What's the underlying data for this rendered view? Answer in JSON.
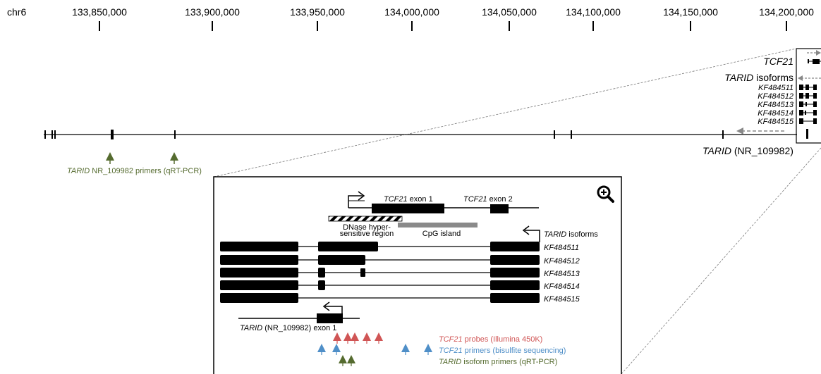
{
  "chrom_label": "chr6",
  "ticks": [
    "133,850,000",
    "133,900,000",
    "133,950,000",
    "134,000,000",
    "134,050,000",
    "134,100,000",
    "134,150,000",
    "134,200,000"
  ],
  "gene_tcf21": "TCF21",
  "tarid_isoforms_top": {
    "gene": "TARID",
    "rest": " isoforms"
  },
  "isoform_ids": [
    "KF484511",
    "KF484512",
    "KF484513",
    "KF484514",
    "KF484515"
  ],
  "tarid_nr": {
    "gene": "TARID",
    "rest": " (NR_109982)"
  },
  "nr_primers": {
    "gene": "TARID",
    "rest": " NR_109982 primers (qRT-PCR)"
  },
  "inset": {
    "exon1": {
      "gene": "TCF21",
      "rest": " exon 1"
    },
    "exon2": {
      "gene": "TCF21",
      "rest": " exon 2"
    },
    "dnase_line1": "DNase hyper-",
    "dnase_line2": "sensitive region",
    "cpg": "CpG island",
    "tarid_isoforms": {
      "gene": "TARID",
      "rest": " isoforms"
    },
    "nr_exon": {
      "gene": "TARID",
      "rest": " (NR_109982) exon 1"
    },
    "legend": [
      {
        "gene": "TCF21",
        "rest": " probes (Illumina 450K)",
        "color": "#d05555"
      },
      {
        "gene": "TCF21",
        "rest": " primers (bisulfite sequencing)",
        "color": "#4f8fc8"
      },
      {
        "gene": "TARID",
        "rest": " isoform primers (qRT-PCR)",
        "color": "#556b2f"
      }
    ]
  },
  "colors": {
    "probe": "#d05555",
    "bisulfite": "#4f8fc8",
    "qrt": "#556b2f",
    "arrow": "#888888"
  }
}
